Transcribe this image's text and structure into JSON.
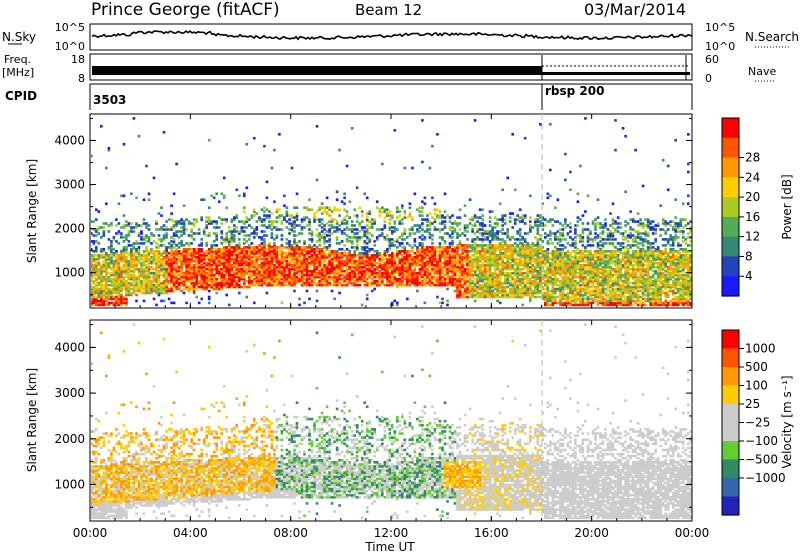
{
  "header": {
    "station": "Prince George (fitACF)",
    "beam": "Beam 12",
    "date": "03/Mar/2014"
  },
  "noise_panel": {
    "left_label": "N.Sky",
    "right_label": "N.Search",
    "left_ticks": [
      "10^5",
      "10^0"
    ],
    "right_ticks": [
      "10^5",
      "10^0"
    ]
  },
  "freq_panel": {
    "left_label_line1": "Freq.",
    "left_label_line2": "[MHz]",
    "left_ticks": [
      "18",
      "8"
    ],
    "right_label": "Nave",
    "right_ticks": [
      "60",
      "0"
    ]
  },
  "cpid_panel": {
    "label": "CPID",
    "entries": [
      {
        "label": "3503",
        "start_hour": 0
      },
      {
        "label": "rbsp 200",
        "start_hour": 18
      }
    ]
  },
  "x_axis": {
    "label": "Time UT",
    "ticks": [
      "00:00",
      "04:00",
      "08:00",
      "12:00",
      "16:00",
      "20:00",
      "00:00"
    ]
  },
  "chart_data": [
    {
      "type": "heatmap",
      "name": "power",
      "ylabel": "Slant Range [km]",
      "yticks": [
        1000,
        2000,
        3000,
        4000
      ],
      "ylim": [
        200,
        4600
      ],
      "xlim": [
        0,
        24
      ],
      "colorbar_label": "Power [dB]",
      "colorbar_ticks": [
        "4",
        "8",
        "12",
        "16",
        "20",
        "24",
        "28"
      ],
      "colorbar_colors": [
        "#1a1aff",
        "#2244bb",
        "#338877",
        "#55aa55",
        "#aacc22",
        "#ffcc00",
        "#ff9900",
        "#ff5500",
        "#ff0000"
      ]
    },
    {
      "type": "heatmap",
      "name": "velocity",
      "ylabel": "Slant Range [km]",
      "yticks": [
        1000,
        2000,
        3000,
        4000
      ],
      "ylim": [
        200,
        4600
      ],
      "xlim": [
        0,
        24
      ],
      "colorbar_label": "Velocity [m s⁻¹]",
      "colorbar_ticks": [
        "1000",
        "500",
        "100",
        "25",
        "−25",
        "−100",
        "−500",
        "−1000"
      ],
      "colorbar_colors": [
        "#2222bb",
        "#3366aa",
        "#338866",
        "#66cc33",
        "#cccccc",
        "#cccccc",
        "#ffcc00",
        "#ff9900",
        "#ff5500",
        "#ff0000"
      ]
    }
  ]
}
